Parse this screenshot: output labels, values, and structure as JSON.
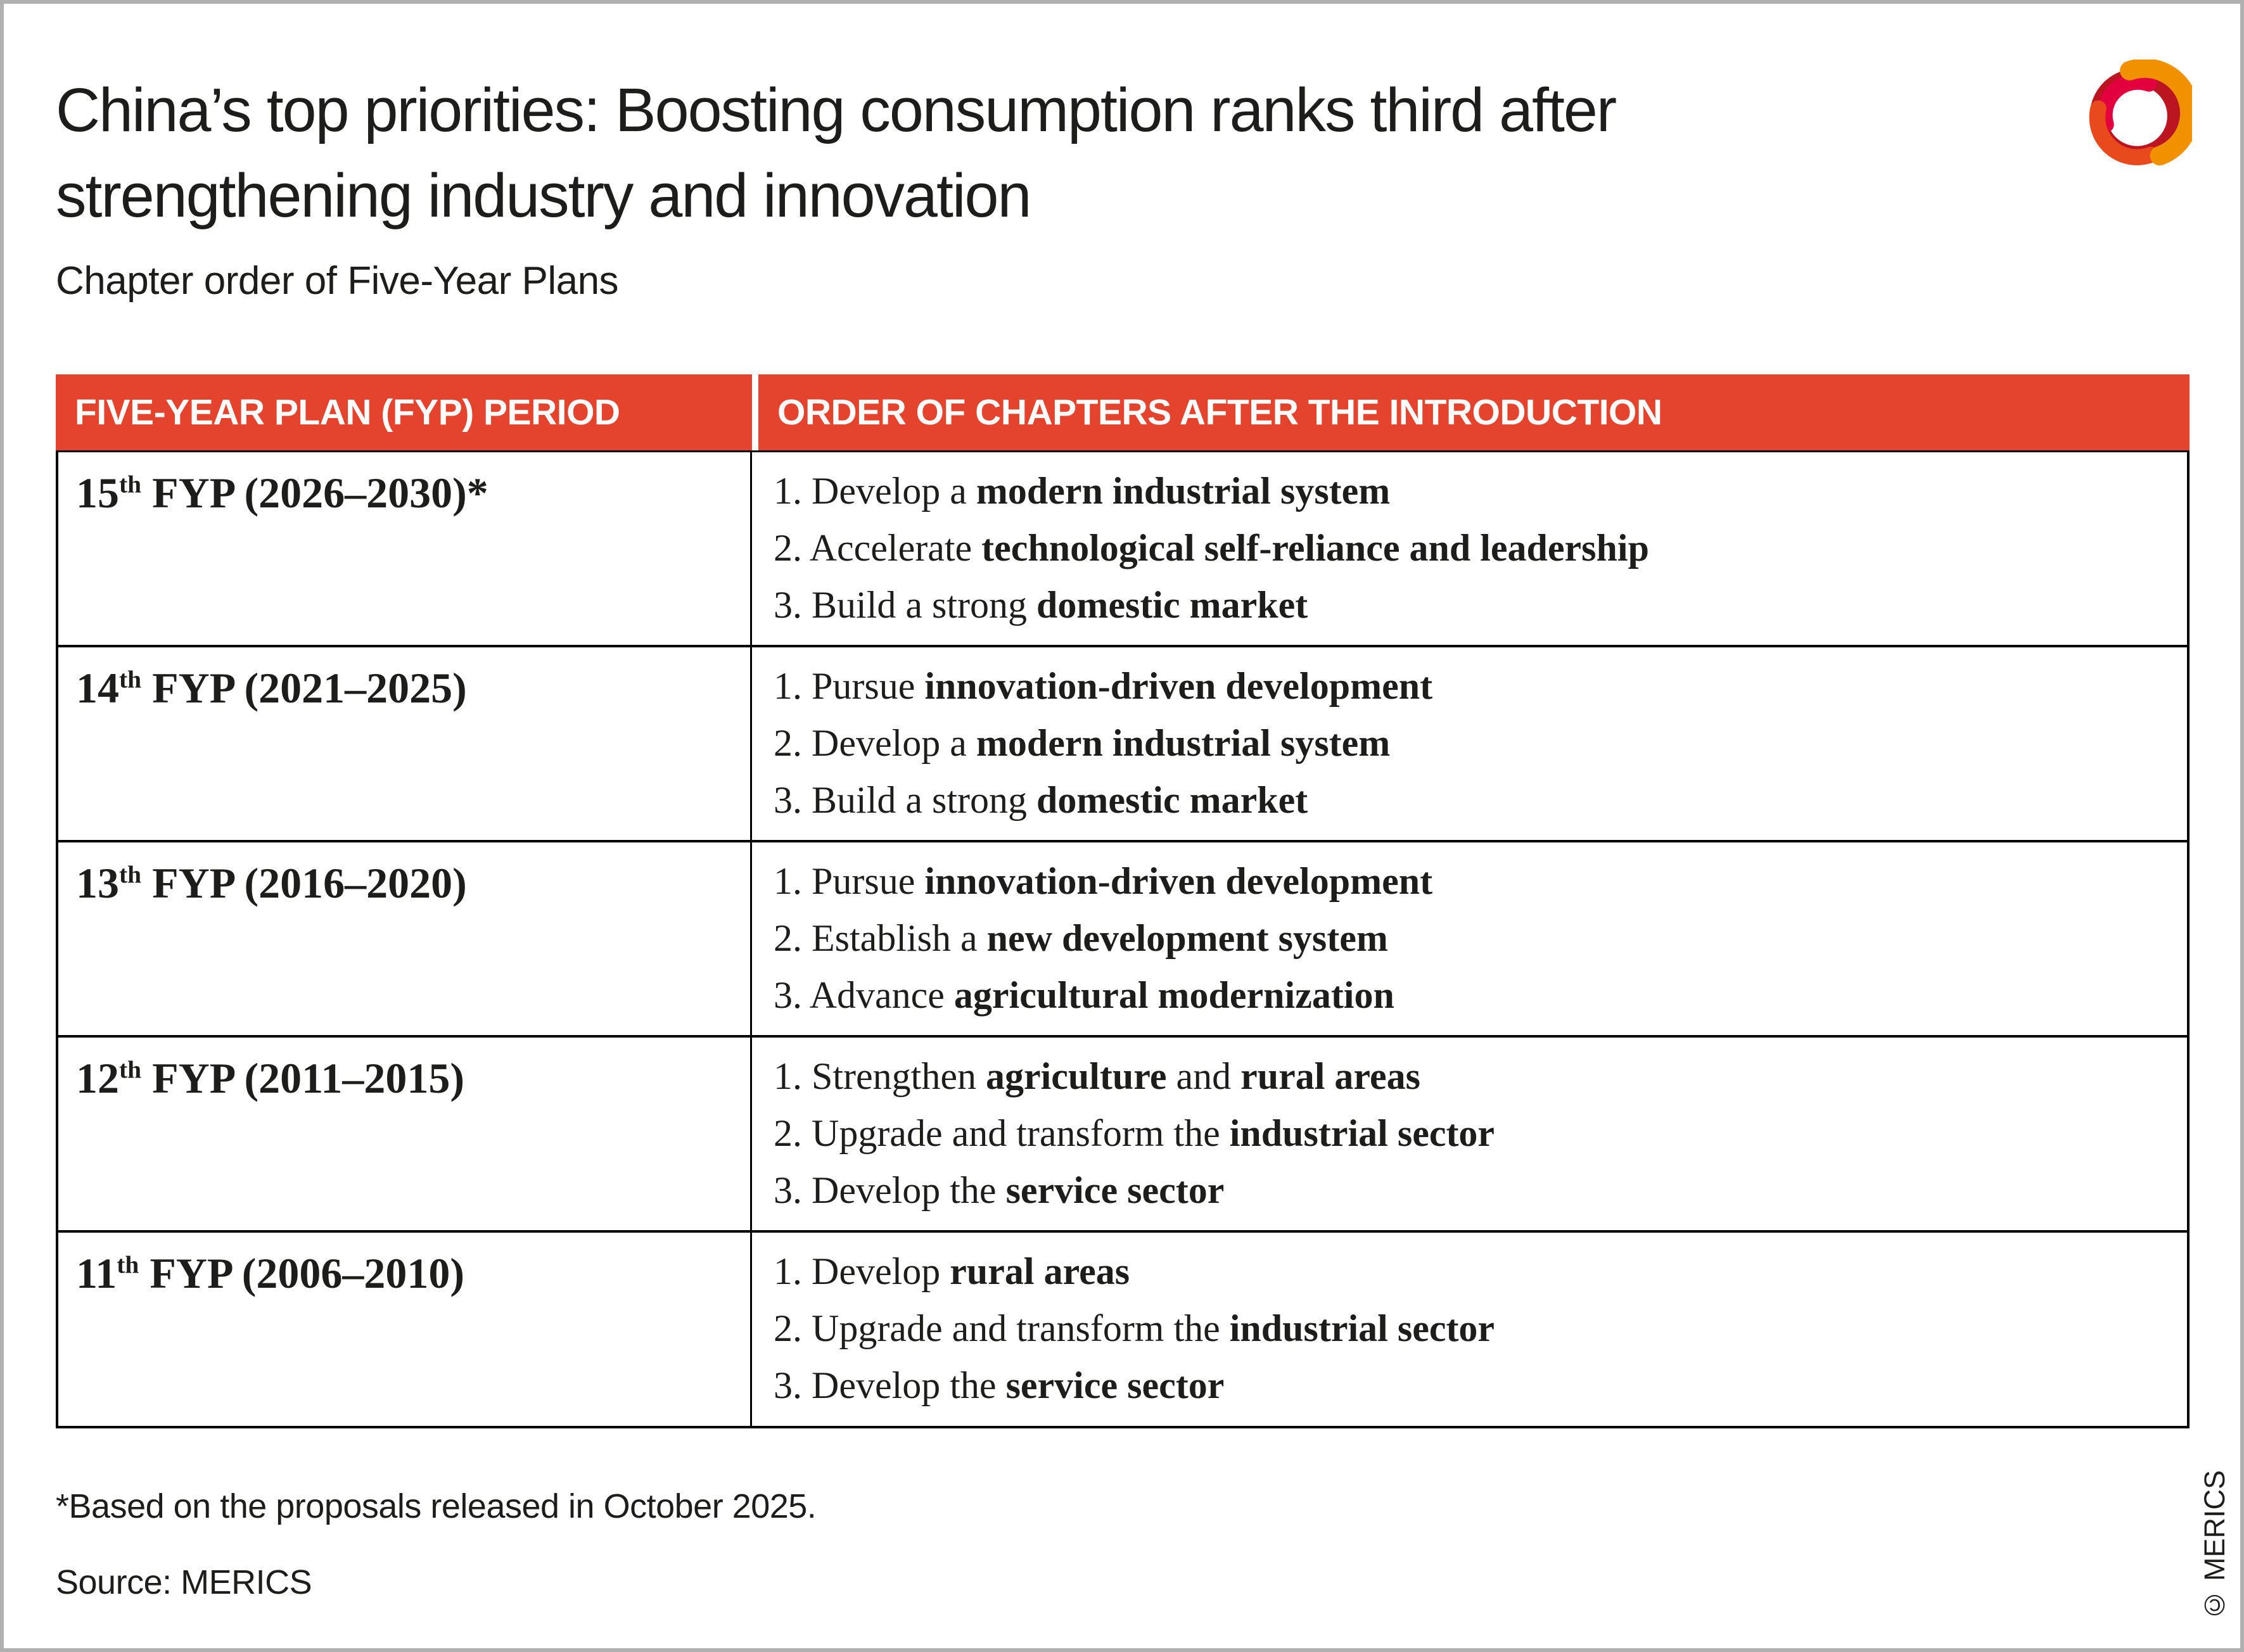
{
  "header": {
    "title_lines": [
      "China’s top priorities: Boosting consumption ranks third after",
      "strengthening industry and innovation"
    ],
    "subtitle": "Chapter order of Five-Year Plans",
    "logo_colors": {
      "base": "#BC1522",
      "pink": "#E3003F",
      "flame": "#E8491D",
      "orange": "#F29100"
    }
  },
  "table": {
    "accent_color": "#E4432D",
    "header_text_color": "#FFFFFF",
    "border_color": "#000000",
    "columns": [
      "FIVE-YEAR PLAN (FYP) PERIOD",
      "ORDER OF CHAPTERS AFTER THE INTRODUCTION"
    ],
    "rows": [
      {
        "period_number": "15",
        "period_suffix": "th",
        "period_rest": " FYP (2026–2030)*",
        "chapters": [
          [
            {
              "text": "1. Develop a "
            },
            {
              "text": "modern industrial system",
              "bold": true
            }
          ],
          [
            {
              "text": "2. Accelerate "
            },
            {
              "text": "technological self-reliance and leadership",
              "bold": true
            }
          ],
          [
            {
              "text": "3. Build a strong "
            },
            {
              "text": "domestic market",
              "bold": true
            }
          ]
        ]
      },
      {
        "period_number": "14",
        "period_suffix": "th",
        "period_rest": " FYP (2021–2025)",
        "chapters": [
          [
            {
              "text": "1. Pursue "
            },
            {
              "text": "innovation-driven development",
              "bold": true
            }
          ],
          [
            {
              "text": "2. Develop a "
            },
            {
              "text": "modern industrial system",
              "bold": true
            }
          ],
          [
            {
              "text": "3. Build a strong "
            },
            {
              "text": "domestic market",
              "bold": true
            }
          ]
        ]
      },
      {
        "period_number": "13",
        "period_suffix": "th",
        "period_rest": " FYP (2016–2020)",
        "chapters": [
          [
            {
              "text": "1. Pursue "
            },
            {
              "text": "innovation-driven development",
              "bold": true
            }
          ],
          [
            {
              "text": "2. Establish a "
            },
            {
              "text": "new development system",
              "bold": true
            }
          ],
          [
            {
              "text": "3. Advance "
            },
            {
              "text": "agricultural modernization",
              "bold": true
            }
          ]
        ]
      },
      {
        "period_number": "12",
        "period_suffix": "th",
        "period_rest": " FYP (2011–2015)",
        "chapters": [
          [
            {
              "text": "1. Strengthen "
            },
            {
              "text": "agriculture",
              "bold": true
            },
            {
              "text": " and "
            },
            {
              "text": "rural areas",
              "bold": true
            }
          ],
          [
            {
              "text": "2. Upgrade and transform the "
            },
            {
              "text": "industrial sector",
              "bold": true
            }
          ],
          [
            {
              "text": "3. Develop the "
            },
            {
              "text": "service sector",
              "bold": true
            }
          ]
        ]
      },
      {
        "period_number": "11",
        "period_suffix": "th",
        "period_rest": " FYP (2006–2010)",
        "chapters": [
          [
            {
              "text": "1. Develop "
            },
            {
              "text": "rural areas",
              "bold": true
            }
          ],
          [
            {
              "text": "2. Upgrade and transform the "
            },
            {
              "text": "industrial sector",
              "bold": true
            }
          ],
          [
            {
              "text": "3. Develop the "
            },
            {
              "text": "service sector",
              "bold": true
            }
          ]
        ]
      }
    ]
  },
  "footer": {
    "footnote": "*Based on the proposals released in October 2025.",
    "source": "Source: MERICS",
    "copyright": "© MERICS"
  },
  "chart_data": {
    "type": "table",
    "title": "China’s top priorities: Boosting consumption ranks third after strengthening industry and innovation",
    "subtitle": "Chapter order of Five-Year Plans",
    "columns": [
      "FIVE-YEAR PLAN (FYP) PERIOD",
      "ORDER OF CHAPTERS AFTER THE INTRODUCTION"
    ],
    "rows": [
      [
        "15th FYP (2026–2030)*",
        "1. Develop a modern industrial system; 2. Accelerate technological self-reliance and leadership; 3. Build a strong domestic market"
      ],
      [
        "14th FYP (2021–2025)",
        "1. Pursue innovation-driven development; 2. Develop a modern industrial system; 3. Build a strong domestic market"
      ],
      [
        "13th FYP (2016–2020)",
        "1. Pursue innovation-driven development; 2. Establish a new development system; 3. Advance agricultural modernization"
      ],
      [
        "12th FYP (2011–2015)",
        "1. Strengthen agriculture and rural areas; 2. Upgrade and transform the industrial sector; 3. Develop the service sector"
      ],
      [
        "11th FYP (2006–2010)",
        "1. Develop rural areas; 2. Upgrade and transform the industrial sector; 3. Develop the service sector"
      ]
    ],
    "footnote": "*Based on the proposals released in October 2025.",
    "source": "Source: MERICS"
  }
}
